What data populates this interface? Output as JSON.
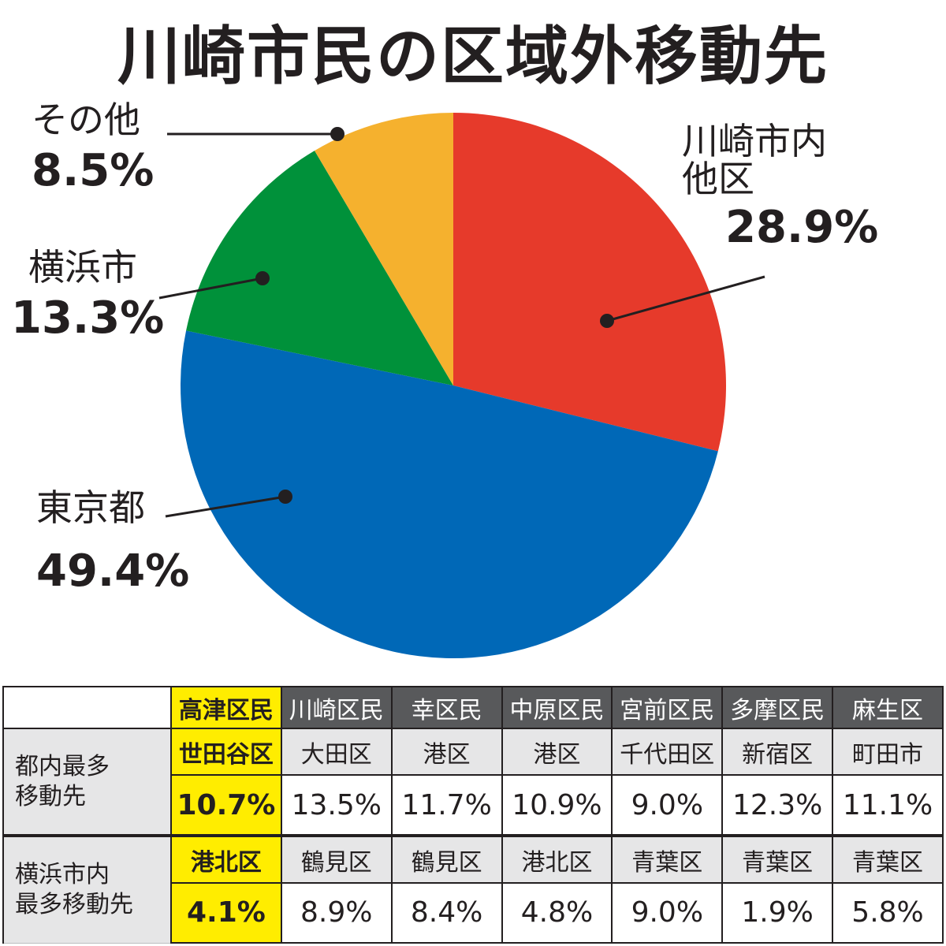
{
  "title": "川崎市民の区域外移動先",
  "chart_data": [
    {
      "type": "pie",
      "title": "川崎市民の区域外移動先",
      "slices": [
        {
          "label": "川崎市内他区",
          "label_lines": [
            "川崎市内",
            "他区"
          ],
          "value": 28.9,
          "value_label": "28.9%",
          "color": "#e63a2b"
        },
        {
          "label": "東京都",
          "value": 49.4,
          "value_label": "49.4%",
          "color": "#0068b7"
        },
        {
          "label": "横浜市",
          "value": 13.3,
          "value_label": "13.3%",
          "color": "#00913a"
        },
        {
          "label": "その他",
          "value": 8.5,
          "value_label": "8.5%",
          "color": "#f5b12e"
        }
      ]
    },
    {
      "type": "table",
      "columns": [
        "高津区民",
        "川崎区民",
        "幸区民",
        "中原区民",
        "宮前区民",
        "多摩区民",
        "麻生区"
      ],
      "highlight_column": "高津区民",
      "rows": [
        {
          "label_lines": [
            "都内最多",
            "移動先"
          ],
          "destinations": [
            "世田谷区",
            "大田区",
            "港区",
            "港区",
            "千代田区",
            "新宿区",
            "町田市"
          ],
          "percents": [
            "10.7%",
            "13.5%",
            "11.7%",
            "10.9%",
            "9.0%",
            "12.3%",
            "11.1%"
          ]
        },
        {
          "label_lines": [
            "横浜市内",
            "最多移動先"
          ],
          "destinations": [
            "港北区",
            "鶴見区",
            "鶴見区",
            "港北区",
            "青葉区",
            "青葉区",
            "青葉区"
          ],
          "percents": [
            "4.1%",
            "8.9%",
            "8.4%",
            "4.8%",
            "9.0%",
            "1.9%",
            "5.8%"
          ]
        }
      ]
    }
  ]
}
